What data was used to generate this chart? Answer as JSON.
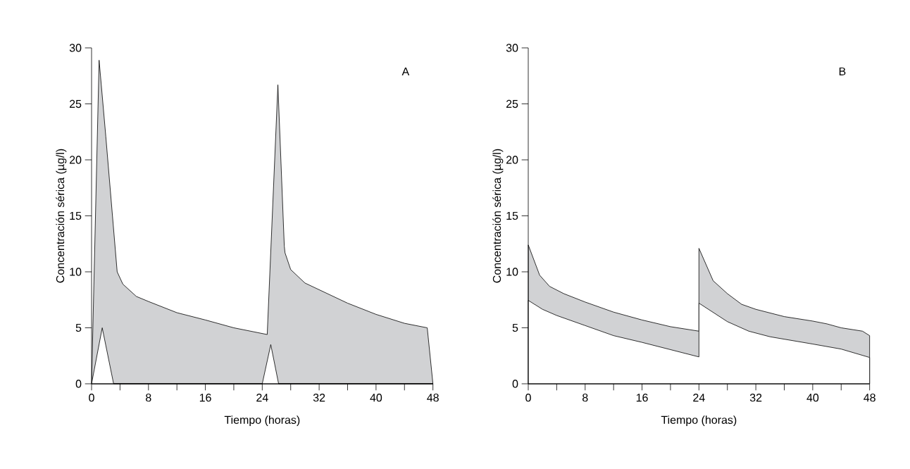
{
  "chart_data": [
    {
      "type": "area",
      "xlabel": "Tiempo (horas)",
      "ylabel": "Concentración sérica (µg/l)",
      "annotations": [
        "A"
      ],
      "xlim": [
        0,
        48
      ],
      "ylim": [
        0,
        30
      ],
      "xticks": [
        0,
        {
          "value": 4,
          "label": null
        },
        8,
        {
          "value": 12,
          "label": null
        },
        16,
        {
          "value": 20,
          "label": null
        },
        24,
        {
          "value": 28,
          "label": null
        },
        32,
        {
          "value": 36,
          "label": null
        },
        40,
        {
          "value": 44,
          "label": null
        },
        48
      ],
      "yticks": [
        0,
        5,
        10,
        15,
        20,
        25,
        30
      ],
      "series": [
        {
          "color": "#d1d2d4",
          "x": [
            0,
            1.06,
            2,
            3.6,
            4.4,
            6.3,
            8,
            12,
            16,
            20,
            24.7,
            26.2,
            27.1,
            27.2,
            28,
            30,
            32,
            36,
            40,
            44,
            47.2,
            48
          ],
          "values": [
            0,
            28.9,
            22.1,
            10.0,
            8.9,
            7.8,
            7.35,
            6.35,
            5.7,
            5.0,
            4.4,
            26.7,
            12.3,
            11.7,
            10.2,
            9.0,
            8.4,
            7.2,
            6.2,
            5.4,
            5.0,
            0
          ]
        },
        {
          "color": "#ffffff",
          "x": [
            0,
            1.5,
            3.1,
            24,
            25.2,
            26.3,
            48
          ],
          "values": [
            0,
            5,
            0,
            0,
            3.5,
            0,
            0
          ]
        }
      ]
    },
    {
      "type": "area",
      "xlabel": "Tiempo (horas)",
      "ylabel": "Concentración sérica (µg/l)",
      "annotations": [
        "B"
      ],
      "xlim": [
        0,
        48
      ],
      "ylim": [
        0,
        30
      ],
      "xticks": [
        0,
        {
          "value": 4,
          "label": null
        },
        8,
        {
          "value": 12,
          "label": null
        },
        16,
        {
          "value": 20,
          "label": null
        },
        24,
        {
          "value": 28,
          "label": null
        },
        32,
        {
          "value": 36,
          "label": null
        },
        40,
        {
          "value": 44,
          "label": null
        },
        48
      ],
      "yticks": [
        0,
        5,
        10,
        15,
        20,
        25,
        30
      ],
      "series": [
        {
          "color": "#d1d2d4",
          "x": [
            0,
            1.6,
            3,
            5,
            8,
            12,
            16,
            20,
            24,
            24,
            26,
            28,
            30,
            32,
            36,
            40,
            42,
            44,
            47,
            48
          ],
          "values": [
            12.4,
            9.7,
            8.7,
            8.05,
            7.3,
            6.4,
            5.7,
            5.1,
            4.7,
            12.1,
            9.2,
            8.05,
            7.1,
            6.65,
            6.0,
            5.6,
            5.35,
            5.0,
            4.7,
            4.3
          ]
        },
        {
          "color": "#ffffff",
          "x": [
            0,
            2,
            4,
            8,
            12,
            16,
            20,
            24,
            24,
            28,
            31,
            34,
            40,
            44,
            48
          ],
          "values": [
            7.45,
            6.65,
            6.1,
            5.2,
            4.3,
            3.7,
            3.05,
            2.4,
            7.2,
            5.55,
            4.7,
            4.2,
            3.55,
            3.1,
            2.35
          ]
        }
      ]
    }
  ]
}
